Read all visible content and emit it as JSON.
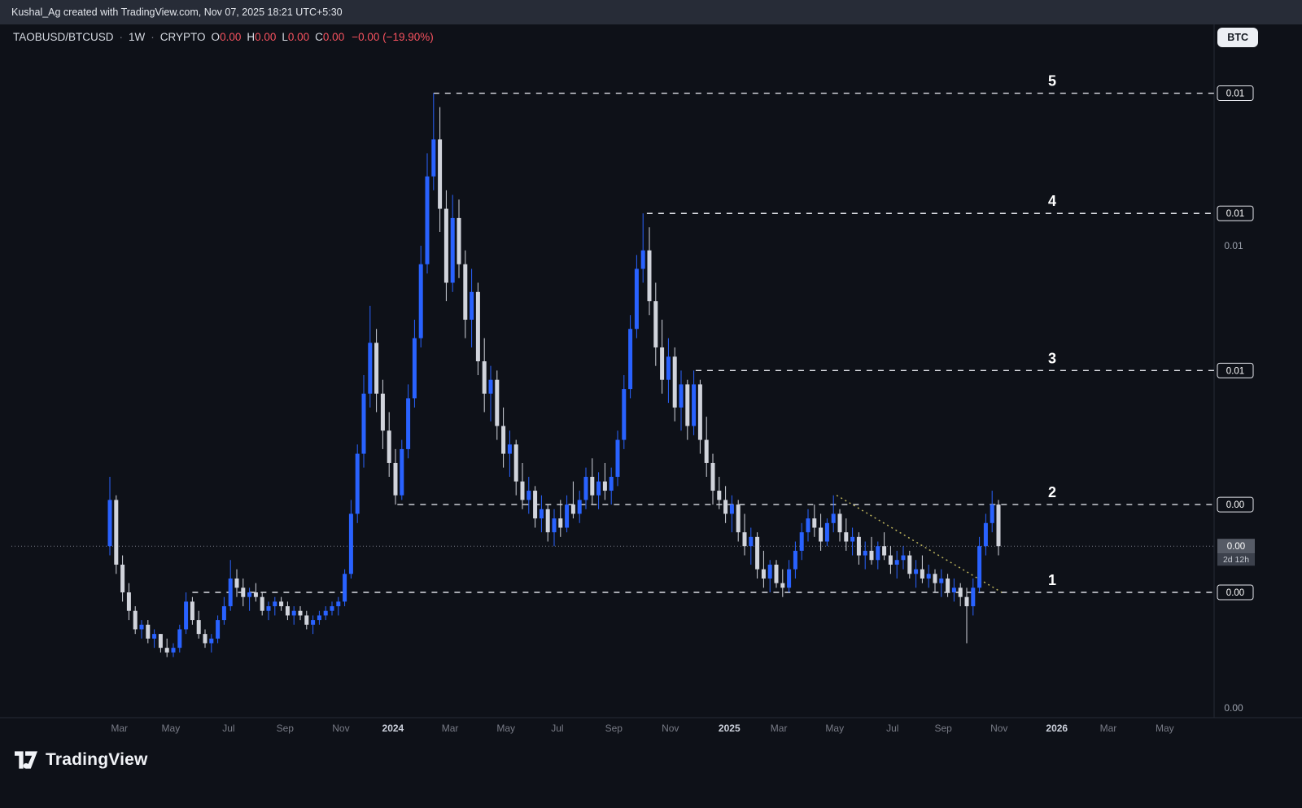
{
  "attribution": "Kushal_Ag created with TradingView.com, Nov 07, 2025 18:21 UTC+5:30",
  "header": {
    "symbol": "TAOBUSD/BTCUSD",
    "sep": "·",
    "interval": "1W",
    "market": "CRYPTO",
    "o_label": "O",
    "o_value": "0.00",
    "h_label": "H",
    "h_value": "0.00",
    "l_label": "L",
    "l_value": "0.00",
    "c_label": "C",
    "c_value": "0.00",
    "change": "−0.00 (−19.90%)"
  },
  "unit_button": "BTC",
  "logo_text": "TradingView",
  "chart_data": {
    "type": "candlestick",
    "symbol": "TAOBUSD/BTCUSD",
    "interval": "1W",
    "market": "CRYPTO",
    "price_unit_btc": 0.0001,
    "ylim_btc": [
      -0.0003,
      0.0141
    ],
    "grid": false,
    "colors": {
      "up": "#2962ff",
      "down": "#d1d4dc",
      "level_line": "#dcdee4",
      "trendline": "#bdb45c",
      "last_price_line": "#787b86",
      "month_tick": "#787b86",
      "year_tick": "#ccd1dc",
      "wave_label": "#ffffff"
    },
    "candles": [
      [
        35,
        50,
        33,
        45
      ],
      [
        45,
        46,
        29,
        31
      ],
      [
        31,
        33,
        23,
        25
      ],
      [
        25,
        27,
        19,
        21
      ],
      [
        21,
        22,
        16,
        17
      ],
      [
        17,
        19,
        15,
        18
      ],
      [
        18,
        19,
        14,
        15
      ],
      [
        15,
        17,
        13,
        16
      ],
      [
        16,
        16,
        12,
        13
      ],
      [
        13,
        15,
        11,
        12
      ],
      [
        12,
        14,
        11,
        13
      ],
      [
        13,
        18,
        12,
        17
      ],
      [
        17,
        25,
        16,
        23
      ],
      [
        23,
        24,
        18,
        19
      ],
      [
        19,
        21,
        15,
        16
      ],
      [
        16,
        17,
        13,
        14
      ],
      [
        14,
        16,
        12,
        15
      ],
      [
        15,
        20,
        14,
        19
      ],
      [
        19,
        24,
        18,
        22
      ],
      [
        22,
        32,
        21,
        28
      ],
      [
        28,
        30,
        24,
        26
      ],
      [
        26,
        28,
        22,
        24
      ],
      [
        24,
        26,
        21,
        25
      ],
      [
        25,
        27,
        23,
        24
      ],
      [
        24,
        25,
        20,
        21
      ],
      [
        21,
        23,
        19,
        22
      ],
      [
        22,
        24,
        20,
        23
      ],
      [
        23,
        24,
        21,
        22
      ],
      [
        22,
        23,
        19,
        20
      ],
      [
        20,
        22,
        18,
        21
      ],
      [
        21,
        22,
        19,
        20
      ],
      [
        20,
        21,
        17,
        18
      ],
      [
        18,
        20,
        16,
        19
      ],
      [
        19,
        21,
        18,
        20
      ],
      [
        20,
        22,
        19,
        21
      ],
      [
        21,
        23,
        20,
        22
      ],
      [
        22,
        24,
        20,
        23
      ],
      [
        23,
        30,
        22,
        29
      ],
      [
        29,
        45,
        28,
        42
      ],
      [
        42,
        57,
        40,
        55
      ],
      [
        55,
        72,
        52,
        68
      ],
      [
        68,
        87,
        65,
        79
      ],
      [
        79,
        82,
        64,
        68
      ],
      [
        68,
        71,
        56,
        60
      ],
      [
        60,
        64,
        50,
        53
      ],
      [
        53,
        56,
        44,
        46
      ],
      [
        46,
        58,
        45,
        56
      ],
      [
        56,
        70,
        54,
        67
      ],
      [
        67,
        84,
        65,
        80
      ],
      [
        80,
        100,
        78,
        96
      ],
      [
        96,
        120,
        94,
        115
      ],
      [
        115,
        133,
        112,
        123
      ],
      [
        123,
        130,
        103,
        108
      ],
      [
        108,
        112,
        88,
        92
      ],
      [
        92,
        111,
        90,
        106
      ],
      [
        106,
        110,
        93,
        96
      ],
      [
        96,
        99,
        80,
        84
      ],
      [
        84,
        95,
        78,
        90
      ],
      [
        90,
        92,
        72,
        75
      ],
      [
        75,
        80,
        64,
        68
      ],
      [
        68,
        74,
        62,
        71
      ],
      [
        71,
        73,
        58,
        61
      ],
      [
        61,
        65,
        52,
        55
      ],
      [
        55,
        60,
        50,
        57
      ],
      [
        57,
        58,
        46,
        49
      ],
      [
        49,
        53,
        43,
        45
      ],
      [
        45,
        50,
        42,
        47
      ],
      [
        47,
        48,
        39,
        41
      ],
      [
        41,
        46,
        38,
        43
      ],
      [
        43,
        44,
        36,
        38
      ],
      [
        38,
        43,
        35,
        41
      ],
      [
        41,
        45,
        37,
        39
      ],
      [
        39,
        46,
        38,
        44
      ],
      [
        44,
        49,
        41,
        42
      ],
      [
        42,
        47,
        40,
        45
      ],
      [
        45,
        52,
        43,
        50
      ],
      [
        50,
        54,
        44,
        46
      ],
      [
        46,
        51,
        43,
        49
      ],
      [
        49,
        53,
        45,
        47
      ],
      [
        47,
        52,
        44,
        50
      ],
      [
        50,
        60,
        48,
        58
      ],
      [
        58,
        72,
        56,
        69
      ],
      [
        69,
        85,
        67,
        82
      ],
      [
        82,
        98,
        80,
        95
      ],
      [
        95,
        107,
        92,
        99
      ],
      [
        99,
        104,
        85,
        88
      ],
      [
        88,
        92,
        74,
        78
      ],
      [
        78,
        84,
        68,
        71
      ],
      [
        71,
        80,
        66,
        76
      ],
      [
        76,
        78,
        62,
        65
      ],
      [
        65,
        73,
        60,
        70
      ],
      [
        70,
        71,
        58,
        61
      ],
      [
        61,
        73,
        59,
        70
      ],
      [
        70,
        71,
        55,
        58
      ],
      [
        58,
        63,
        50,
        53
      ],
      [
        53,
        55,
        44,
        47
      ],
      [
        47,
        50,
        43,
        45
      ],
      [
        45,
        48,
        40,
        42
      ],
      [
        42,
        46,
        38,
        44
      ],
      [
        44,
        45,
        36,
        38
      ],
      [
        38,
        42,
        33,
        35
      ],
      [
        35,
        39,
        31,
        37
      ],
      [
        37,
        38,
        28,
        30
      ],
      [
        30,
        34,
        26,
        28
      ],
      [
        28,
        32,
        25,
        31
      ],
      [
        31,
        32,
        26,
        27
      ],
      [
        27,
        30,
        24,
        26
      ],
      [
        26,
        32,
        25,
        30
      ],
      [
        30,
        36,
        28,
        34
      ],
      [
        34,
        40,
        32,
        38
      ],
      [
        38,
        43,
        36,
        41
      ],
      [
        41,
        44,
        37,
        39
      ],
      [
        39,
        42,
        34,
        36
      ],
      [
        36,
        41,
        35,
        40
      ],
      [
        40,
        46,
        38,
        42
      ],
      [
        42,
        43,
        36,
        38
      ],
      [
        38,
        41,
        34,
        36
      ],
      [
        36,
        39,
        33,
        37
      ],
      [
        37,
        38,
        31,
        33
      ],
      [
        33,
        36,
        30,
        34
      ],
      [
        34,
        37,
        31,
        32
      ],
      [
        32,
        36,
        30,
        35
      ],
      [
        35,
        38,
        32,
        33
      ],
      [
        33,
        35,
        29,
        31
      ],
      [
        31,
        34,
        28,
        32
      ],
      [
        32,
        35,
        30,
        33
      ],
      [
        33,
        34,
        28,
        29
      ],
      [
        29,
        32,
        26,
        30
      ],
      [
        30,
        33,
        27,
        28
      ],
      [
        28,
        31,
        26,
        29
      ],
      [
        29,
        30,
        25,
        27
      ],
      [
        27,
        30,
        24,
        28
      ],
      [
        28,
        29,
        24,
        25
      ],
      [
        25,
        28,
        23,
        26
      ],
      [
        26,
        27,
        22,
        24
      ],
      [
        24,
        26,
        14,
        22
      ],
      [
        22,
        28,
        20,
        26
      ],
      [
        26,
        37,
        25,
        35
      ],
      [
        35,
        42,
        33,
        40
      ],
      [
        40,
        47,
        38,
        44
      ],
      [
        44,
        45,
        33,
        35
      ]
    ],
    "levels": [
      {
        "wave": "5",
        "price_u": 133,
        "axis_label": "0.01",
        "start_i": 51
      },
      {
        "wave": "4",
        "price_u": 107,
        "axis_label": "0.01",
        "start_i": 84.6
      },
      {
        "wave": "3",
        "price_u": 73,
        "axis_label": "0.01",
        "start_i": 92.3
      },
      {
        "wave": "2",
        "price_u": 44,
        "axis_label": "0.00",
        "start_i": 45.3
      },
      {
        "wave": "1",
        "price_u": 25,
        "axis_label": "0.00",
        "start_i": 13
      }
    ],
    "trendline": {
      "from": {
        "i": 114.5,
        "price_u": 46
      },
      "to": {
        "i": 140.5,
        "price_u": 25
      }
    },
    "last_price": {
      "axis_label": "0.00",
      "price_u": 35,
      "countdown": "2d 12h"
    },
    "price_ticks": [
      {
        "label": "0.01",
        "price_u": 100
      },
      {
        "label": "0.00",
        "price_u": 0
      }
    ],
    "x_ticks": [
      {
        "label": "Mar",
        "i": 1.5,
        "year": false
      },
      {
        "label": "May",
        "i": 9.6,
        "year": false
      },
      {
        "label": "Jul",
        "i": 18.7,
        "year": false
      },
      {
        "label": "Sep",
        "i": 27.6,
        "year": false
      },
      {
        "label": "Nov",
        "i": 36.4,
        "year": false
      },
      {
        "label": "2024",
        "i": 44.6,
        "year": true
      },
      {
        "label": "Mar",
        "i": 53.6,
        "year": false
      },
      {
        "label": "May",
        "i": 62.4,
        "year": false
      },
      {
        "label": "Jul",
        "i": 70.5,
        "year": false
      },
      {
        "label": "Sep",
        "i": 79.4,
        "year": false
      },
      {
        "label": "Nov",
        "i": 88.3,
        "year": false
      },
      {
        "label": "2025",
        "i": 97.6,
        "year": true
      },
      {
        "label": "Mar",
        "i": 105.4,
        "year": false
      },
      {
        "label": "May",
        "i": 114.2,
        "year": false
      },
      {
        "label": "Jul",
        "i": 123.3,
        "year": false
      },
      {
        "label": "Sep",
        "i": 131.3,
        "year": false
      },
      {
        "label": "Nov",
        "i": 140.1,
        "year": false
      },
      {
        "label": "2026",
        "i": 149.2,
        "year": true
      },
      {
        "label": "Mar",
        "i": 157.3,
        "year": false
      },
      {
        "label": "May",
        "i": 166.2,
        "year": false
      }
    ]
  }
}
